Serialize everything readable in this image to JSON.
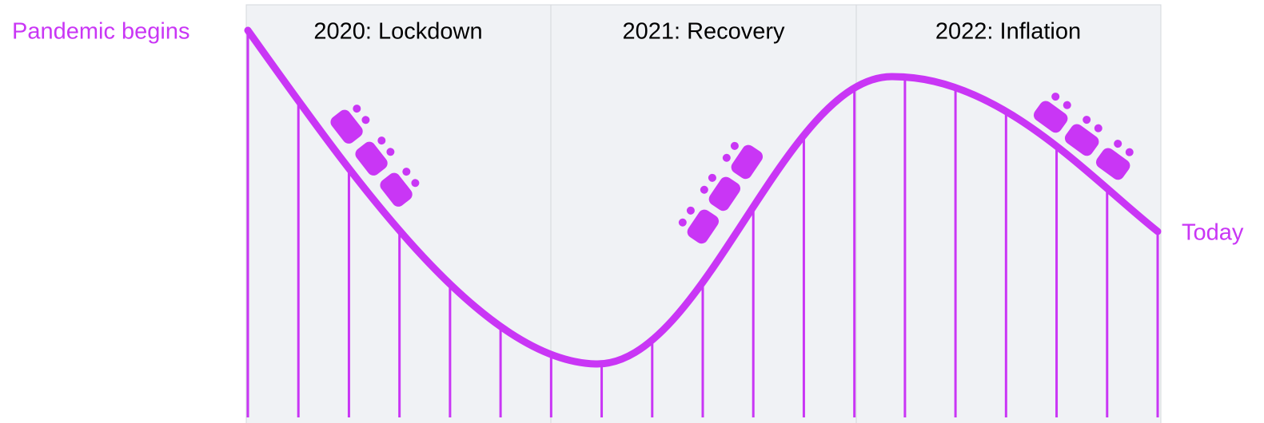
{
  "phases": [
    "2020: Lockdown",
    "2021: Recovery",
    "2022: Inflation"
  ],
  "start_label": "Pandemic begins",
  "end_label": "Today"
}
